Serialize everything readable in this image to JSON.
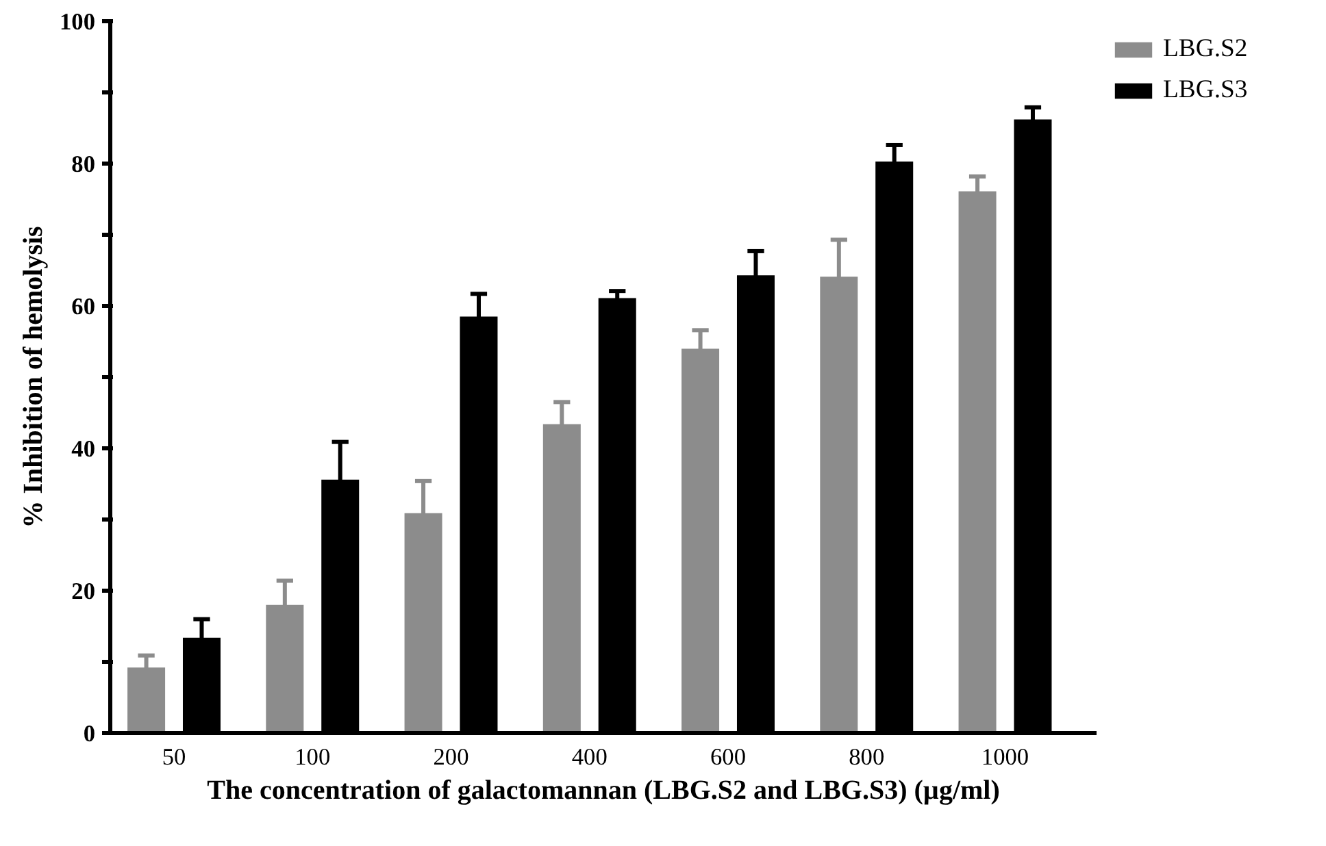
{
  "chart_data": {
    "type": "bar",
    "xlabel": "The concentration of galactomannan (LBG.S2 and LBG.S3) (µg/ml)",
    "ylabel": "% Inhibition of hemolysis",
    "categories": [
      "50",
      "100",
      "200",
      "400",
      "600",
      "800",
      "1000"
    ],
    "series": [
      {
        "name": "LBG.S2",
        "color": "#8c8c8c",
        "values": [
          9.2,
          18.0,
          30.9,
          43.4,
          54.0,
          64.1,
          76.1
        ],
        "errors": [
          1.7,
          3.4,
          4.5,
          3.1,
          2.6,
          5.2,
          2.1
        ]
      },
      {
        "name": "LBG.S3",
        "color": "#000000",
        "values": [
          13.4,
          35.6,
          58.5,
          61.1,
          64.3,
          80.3,
          86.2
        ],
        "errors": [
          2.6,
          5.3,
          3.2,
          1.0,
          3.4,
          2.3,
          1.7
        ]
      }
    ],
    "ylim": [
      0,
      100
    ],
    "yticks": [
      0,
      {
        "value": 10,
        "label": null
      },
      20,
      {
        "value": 30,
        "label": null
      },
      40,
      {
        "value": 50,
        "label": null
      },
      60,
      {
        "value": 70,
        "label": null
      },
      80,
      {
        "value": 90,
        "label": null
      },
      100
    ],
    "grid": false,
    "legend": "top right"
  }
}
